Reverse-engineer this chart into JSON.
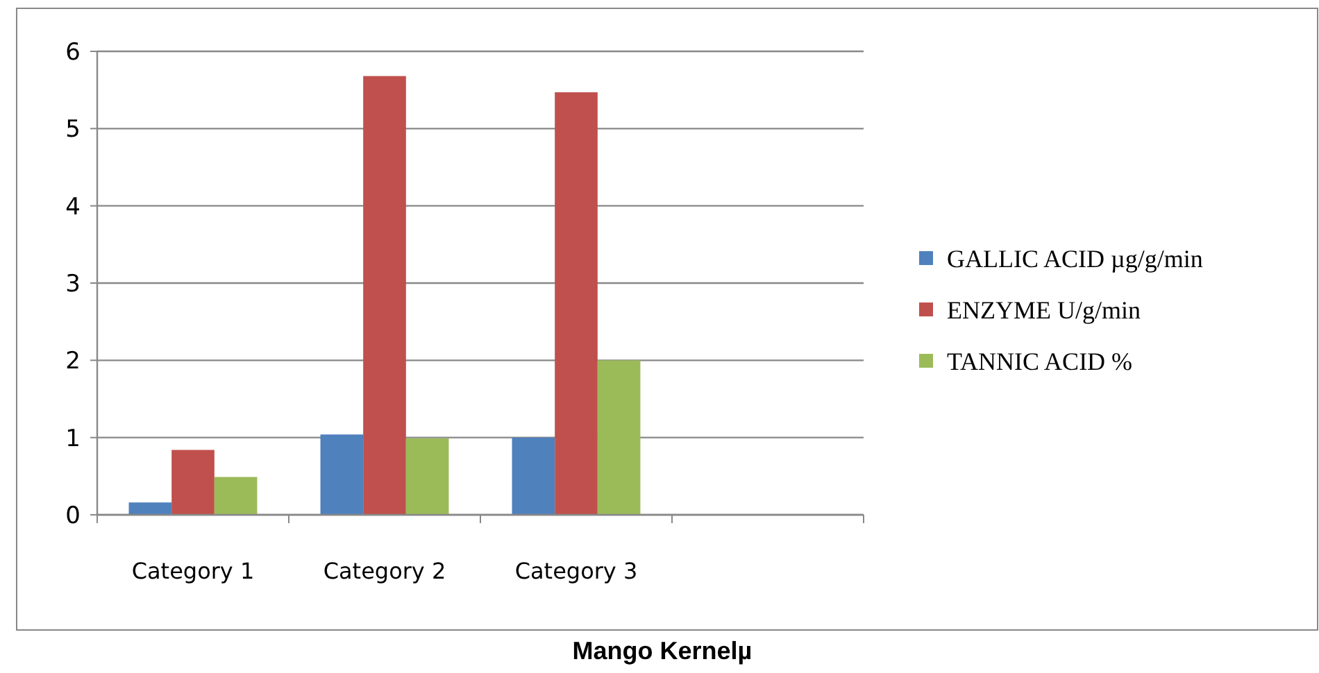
{
  "chart_data": {
    "type": "bar",
    "title": "Mango Kernelµ",
    "categories": [
      "Category 1",
      "Category 2",
      "Category 3",
      null
    ],
    "series": [
      {
        "name": "GALLIC ACID µg/g/min",
        "color": "#4f81bd",
        "values": [
          0.16,
          1.04,
          1.0,
          null
        ]
      },
      {
        "name": "ENZYME U/g/min",
        "color": "#c0504d",
        "values": [
          0.84,
          5.68,
          5.47,
          null
        ]
      },
      {
        "name": "TANNIC ACID %",
        "color": "#9bbb59",
        "values": [
          0.49,
          0.99,
          2.0,
          null
        ]
      }
    ],
    "ylim": [
      0,
      6
    ],
    "yticks": [
      0,
      1,
      2,
      3,
      4,
      5,
      6
    ],
    "grid": "y",
    "legend": "right"
  }
}
